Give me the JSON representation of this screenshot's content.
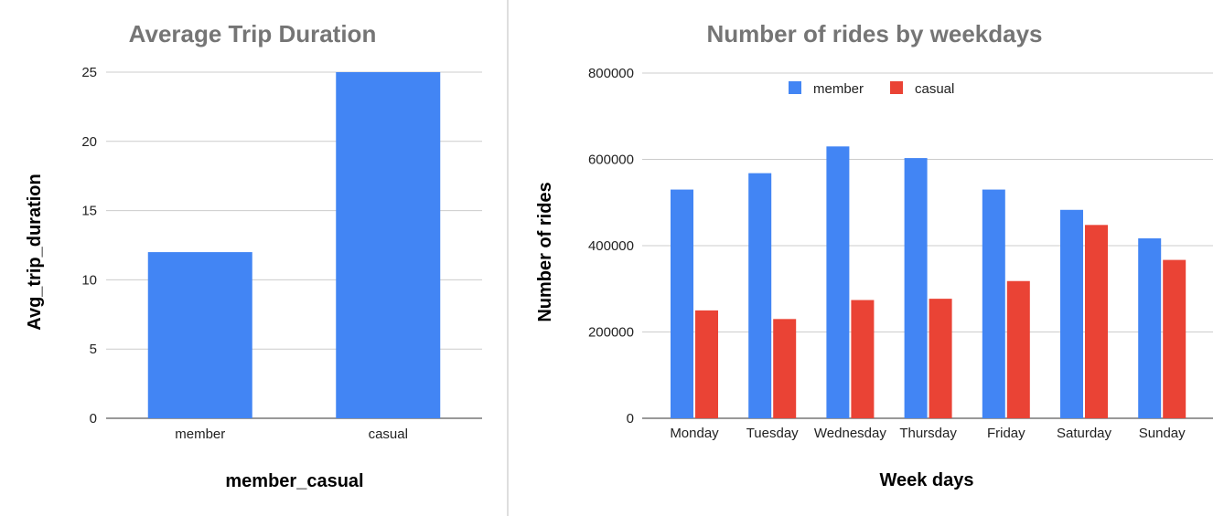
{
  "colors": {
    "member": "#4285f4",
    "casual": "#ea4335",
    "grid": "#cccccc",
    "axis": "#333333",
    "divider": "#bdbdbd"
  },
  "chart_data": [
    {
      "type": "bar",
      "title": "Average Trip Duration",
      "xlabel": "member_casual",
      "ylabel": "Avg_trip_duration",
      "categories": [
        "member",
        "casual"
      ],
      "values": [
        12,
        25
      ],
      "ylim": [
        0,
        25
      ],
      "yticks": [
        "0",
        "5",
        "10",
        "15",
        "20",
        "25"
      ],
      "grid": true,
      "legend": "none"
    },
    {
      "type": "bar",
      "title": "Number of rides by weekdays",
      "xlabel": "Week days",
      "ylabel": "Number of rides",
      "categories": [
        "Monday",
        "Tuesday",
        "Wednesday",
        "Thursday",
        "Friday",
        "Saturday",
        "Sunday"
      ],
      "series": [
        {
          "name": "member",
          "values": [
            530000,
            568000,
            630000,
            603000,
            530000,
            483000,
            417000
          ]
        },
        {
          "name": "casual",
          "values": [
            250000,
            230000,
            274000,
            277000,
            318000,
            448000,
            367000
          ]
        }
      ],
      "ylim": [
        0,
        800000
      ],
      "yticks": [
        "0",
        "200000",
        "400000",
        "600000",
        "800000"
      ],
      "grid": true,
      "legend": "top-center"
    }
  ]
}
